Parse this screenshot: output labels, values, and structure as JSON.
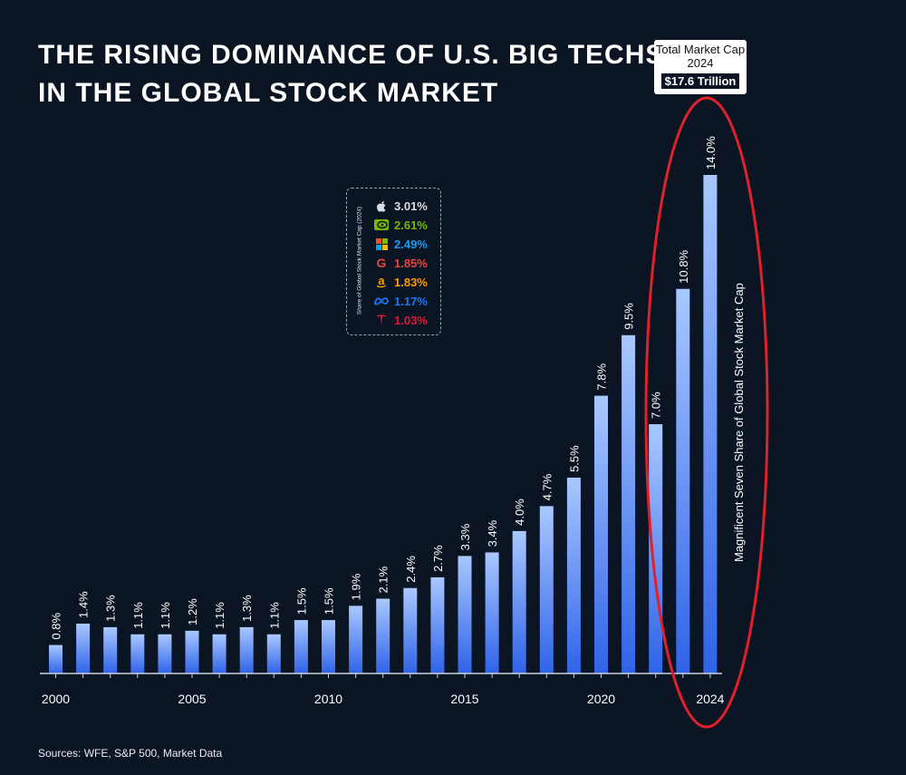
{
  "title": {
    "line1": "THE RISING DOMINANCE OF U.S. BIG TECHS",
    "line2": "IN THE GLOBAL STOCK MARKET"
  },
  "market_cap": {
    "label": "Total Market Cap",
    "year": "2024",
    "value": "$17.6 Trillion"
  },
  "legend": {
    "title": "Share of Global Stock Market Cap (2024)",
    "items": [
      {
        "company": "Apple",
        "icon": "apple-icon",
        "value": "3.01%",
        "color": "#d9dde3"
      },
      {
        "company": "Nvidia",
        "icon": "nvidia-icon",
        "value": "2.61%",
        "color": "#76b900"
      },
      {
        "company": "Microsoft",
        "icon": "microsoft-icon",
        "value": "2.49%",
        "color": "#1e9cf0"
      },
      {
        "company": "Google",
        "icon": "google-icon",
        "value": "1.85%",
        "color": "#e8453c"
      },
      {
        "company": "Amazon",
        "icon": "amazon-icon",
        "value": "1.83%",
        "color": "#ff9900"
      },
      {
        "company": "Meta",
        "icon": "meta-icon",
        "value": "1.17%",
        "color": "#1877f2"
      },
      {
        "company": "Tesla",
        "icon": "tesla-icon",
        "value": "1.03%",
        "color": "#e31937"
      }
    ]
  },
  "annotation": "Magnificent Seven Share of Global Stock Market Cap",
  "source": "Sources: WFE, S&P 500, Market Data",
  "colors": {
    "background": "#0b1422",
    "bar_top": "#a9c8ff",
    "bar_bottom": "#2f63e8",
    "highlight_ellipse": "#e0212b"
  },
  "chart_data": {
    "type": "bar",
    "title": "THE RISING DOMINANCE OF U.S. BIG TECHS IN THE GLOBAL STOCK MARKET",
    "xlabel": "",
    "ylabel": "Magnificent Seven Share of Global Stock Market Cap",
    "categories": [
      2000,
      2001,
      2002,
      2003,
      2004,
      2005,
      2006,
      2007,
      2008,
      2009,
      2010,
      2011,
      2012,
      2013,
      2014,
      2015,
      2016,
      2017,
      2018,
      2019,
      2020,
      2021,
      2022,
      2023,
      2024
    ],
    "values": [
      0.8,
      1.4,
      1.3,
      1.1,
      1.1,
      1.2,
      1.1,
      1.3,
      1.1,
      1.5,
      1.5,
      1.9,
      2.1,
      2.4,
      2.7,
      3.3,
      3.4,
      4.0,
      4.7,
      5.5,
      7.8,
      9.5,
      7.0,
      10.8,
      14.0
    ],
    "labels": [
      "0.8%",
      "1.4%",
      "1.3%",
      "1.1%",
      "1.1%",
      "1.2%",
      "1.1%",
      "1.3%",
      "1.1%",
      "1.5%",
      "1.5%",
      "1.9%",
      "2.1%",
      "2.4%",
      "2.7%",
      "3.3%",
      "3.4%",
      "4.0%",
      "4.7%",
      "5.5%",
      "7.8%",
      "9.5%",
      "7.0%",
      "10.8%",
      "14.0%"
    ],
    "x_tick_labels": [
      "2000",
      "2005",
      "2010",
      "2015",
      "2020",
      "2024"
    ],
    "ylim": [
      0,
      14.0
    ],
    "grid": false,
    "legend_position": "top-center"
  }
}
